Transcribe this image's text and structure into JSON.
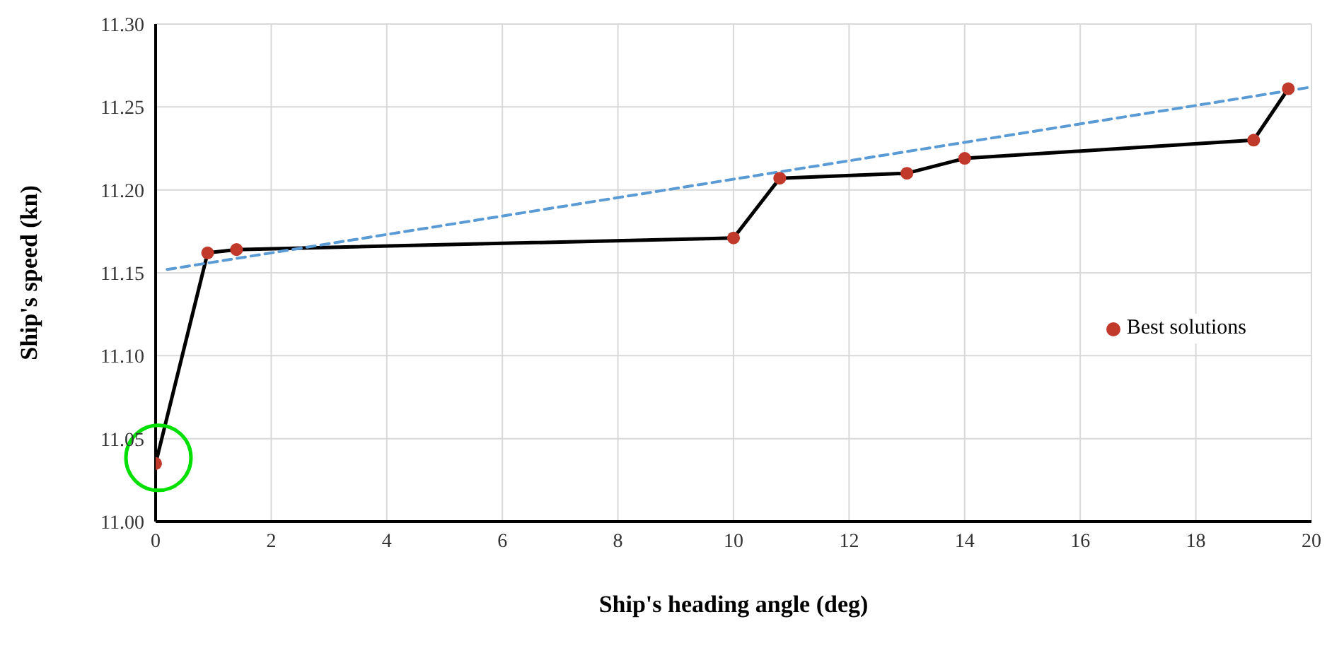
{
  "chart_data": {
    "type": "line",
    "xlabel": "Ship's heading angle (deg)",
    "ylabel": "Ship's speed (kn)",
    "xlim": [
      0,
      20
    ],
    "xticks": [
      0,
      2,
      4,
      6,
      8,
      10,
      12,
      14,
      16,
      18,
      20
    ],
    "ylim": [
      11.0,
      11.3
    ],
    "yticks": [
      {
        "value": 11.0,
        "label": "11.00"
      },
      {
        "value": 11.05,
        "label": "11.05"
      },
      {
        "value": 11.1,
        "label": "11.10"
      },
      {
        "value": 11.15,
        "label": "11.15"
      },
      {
        "value": 11.2,
        "label": "11.20"
      },
      {
        "value": 11.25,
        "label": "11.25"
      },
      {
        "value": 11.3,
        "label": "11.30"
      }
    ],
    "grid": true,
    "legend": "right",
    "series": [
      {
        "color": "#000000",
        "marker": "none",
        "line_style": "solid",
        "x": [
          0,
          0.9,
          1.4,
          10,
          10.8,
          13,
          14,
          19,
          19.6
        ],
        "values": [
          11.035,
          11.162,
          11.164,
          11.171,
          11.207,
          11.21,
          11.219,
          11.23,
          11.261
        ]
      },
      {
        "type": "scatter",
        "name": "Best solutions",
        "color": "#c0392b",
        "marker": "circle",
        "x": [
          0,
          0.9,
          1.4,
          10,
          10.8,
          13,
          14,
          19,
          19.6
        ],
        "values": [
          11.035,
          11.162,
          11.164,
          11.171,
          11.207,
          11.21,
          11.219,
          11.23,
          11.261
        ]
      },
      {
        "type": "line",
        "color": "#5b9bd5",
        "marker": "none",
        "line_style": "dashed",
        "x": [
          0.2,
          20
        ],
        "values": [
          11.152,
          11.262
        ]
      }
    ]
  }
}
